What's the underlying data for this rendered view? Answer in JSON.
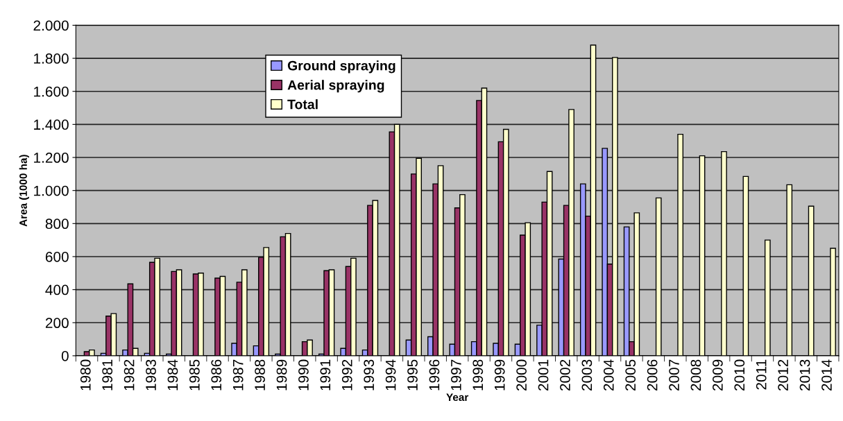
{
  "chart_data": {
    "type": "bar",
    "xlabel": "Year",
    "ylabel": "Area (1000 ha)",
    "categories": [
      "1980",
      "1981",
      "1982",
      "1983",
      "1984",
      "1985",
      "1986",
      "1987",
      "1988",
      "1989",
      "1990",
      "1991",
      "1992",
      "1993",
      "1994",
      "1995",
      "1996",
      "1997",
      "1998",
      "1999",
      "2000",
      "2001",
      "2002",
      "2003",
      "2004",
      "2005",
      "2006",
      "2007",
      "2008",
      "2009",
      "2010",
      "2011",
      "2012",
      "2013",
      "2014"
    ],
    "series": [
      {
        "name": "Ground spraying",
        "color": "#9999ff",
        "values": [
          null,
          15,
          35,
          15,
          10,
          null,
          null,
          75,
          60,
          10,
          null,
          10,
          45,
          35,
          null,
          95,
          115,
          70,
          85,
          75,
          70,
          185,
          585,
          1040,
          1255,
          780,
          null,
          null,
          null,
          null,
          null,
          null,
          null,
          null,
          null
        ]
      },
      {
        "name": "Aerial spraying",
        "color": "#993366",
        "values": [
          25,
          240,
          435,
          565,
          510,
          495,
          470,
          445,
          595,
          720,
          85,
          515,
          540,
          910,
          1355,
          1100,
          1040,
          895,
          1545,
          1295,
          730,
          930,
          910,
          845,
          555,
          85,
          null,
          null,
          null,
          null,
          null,
          null,
          null,
          null,
          null
        ]
      },
      {
        "name": "Total",
        "color": "#ffffcc",
        "values": [
          35,
          255,
          45,
          590,
          520,
          500,
          480,
          520,
          655,
          740,
          95,
          520,
          590,
          940,
          1400,
          1195,
          1150,
          975,
          1620,
          1370,
          805,
          1115,
          1490,
          1880,
          1805,
          865,
          955,
          1340,
          1210,
          1235,
          1085,
          700,
          1035,
          905,
          650
        ]
      }
    ],
    "ylim": [
      0,
      2000
    ],
    "yticks": [
      0,
      {
        "value": 200,
        "label": "200"
      },
      {
        "value": 400,
        "label": "400"
      },
      {
        "value": 600,
        "label": "600"
      },
      {
        "value": 800,
        "label": "800"
      },
      {
        "value": 1000,
        "label": "1.000"
      },
      {
        "value": 1200,
        "label": "1.200"
      },
      {
        "value": 1400,
        "label": "1.400"
      },
      {
        "value": 1600,
        "label": "1.600"
      },
      {
        "value": 1800,
        "label": "1.800"
      },
      {
        "value": 2000,
        "label": "2.000"
      }
    ],
    "grid": "y",
    "legend": "top left"
  }
}
